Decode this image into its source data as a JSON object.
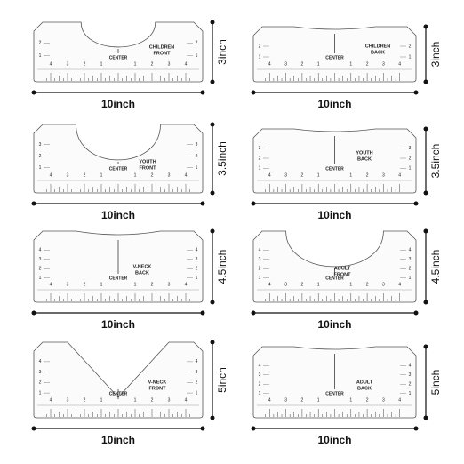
{
  "rulers": [
    {
      "name": [
        "CHILDREN",
        "FRONT"
      ],
      "center_label": "CENTER",
      "scale_labels": [
        "4",
        "3",
        "2",
        "1",
        "1",
        "2",
        "3",
        "4"
      ],
      "side_labels": [
        "2",
        "1"
      ],
      "width_label": "10inch",
      "height_label": "3inch"
    },
    {
      "name": [
        "CHILDREN",
        "BACK"
      ],
      "center_label": "CENTER",
      "scale_labels": [
        "4",
        "3",
        "2",
        "1",
        "1",
        "2",
        "3",
        "4"
      ],
      "side_labels": [
        "2",
        "1"
      ],
      "width_label": "10inch",
      "height_label": "3inch"
    },
    {
      "name": [
        "YOUTH",
        "FRONT"
      ],
      "center_label": "CENTER",
      "scale_labels": [
        "4",
        "3",
        "2",
        "1",
        "1",
        "2",
        "3",
        "4"
      ],
      "side_labels": [
        "3",
        "2",
        "1"
      ],
      "width_label": "10inch",
      "height_label": "3.5inch"
    },
    {
      "name": [
        "YOUTH",
        "BACK"
      ],
      "center_label": "CENTER",
      "scale_labels": [
        "4",
        "3",
        "2",
        "1",
        "1",
        "2",
        "3",
        "4"
      ],
      "side_labels": [
        "3",
        "2",
        "1"
      ],
      "width_label": "10inch",
      "height_label": "3.5inch"
    },
    {
      "name": [
        "V-NECK",
        "BACK"
      ],
      "center_label": "CENTER",
      "scale_labels": [
        "4",
        "3",
        "2",
        "1",
        "1",
        "2",
        "3",
        "4"
      ],
      "side_labels": [
        "4",
        "3",
        "2",
        "1"
      ],
      "width_label": "10inch",
      "height_label": "4.5inch"
    },
    {
      "name": [
        "ADULT",
        "FRONT"
      ],
      "center_label": "CENTER",
      "scale_labels": [
        "4",
        "3",
        "2",
        "1",
        "1",
        "2",
        "3",
        "4"
      ],
      "side_labels": [
        "4",
        "3",
        "2",
        "1"
      ],
      "width_label": "10inch",
      "height_label": "4.5inch"
    },
    {
      "name": [
        "V-NECK",
        "FRONT"
      ],
      "center_label": "CENTER",
      "scale_labels": [
        "4",
        "3",
        "2",
        "1",
        "1",
        "2",
        "3",
        "4"
      ],
      "side_labels": [
        "4",
        "3",
        "2",
        "1"
      ],
      "width_label": "10inch",
      "height_label": "5inch"
    },
    {
      "name": [
        "ADULT",
        "BACK"
      ],
      "center_label": "CENTER",
      "scale_labels": [
        "4",
        "3",
        "2",
        "1",
        "1",
        "2",
        "3",
        "4"
      ],
      "side_labels": [
        "4",
        "3",
        "2",
        "1"
      ],
      "width_label": "10inch",
      "height_label": "5inch"
    }
  ]
}
